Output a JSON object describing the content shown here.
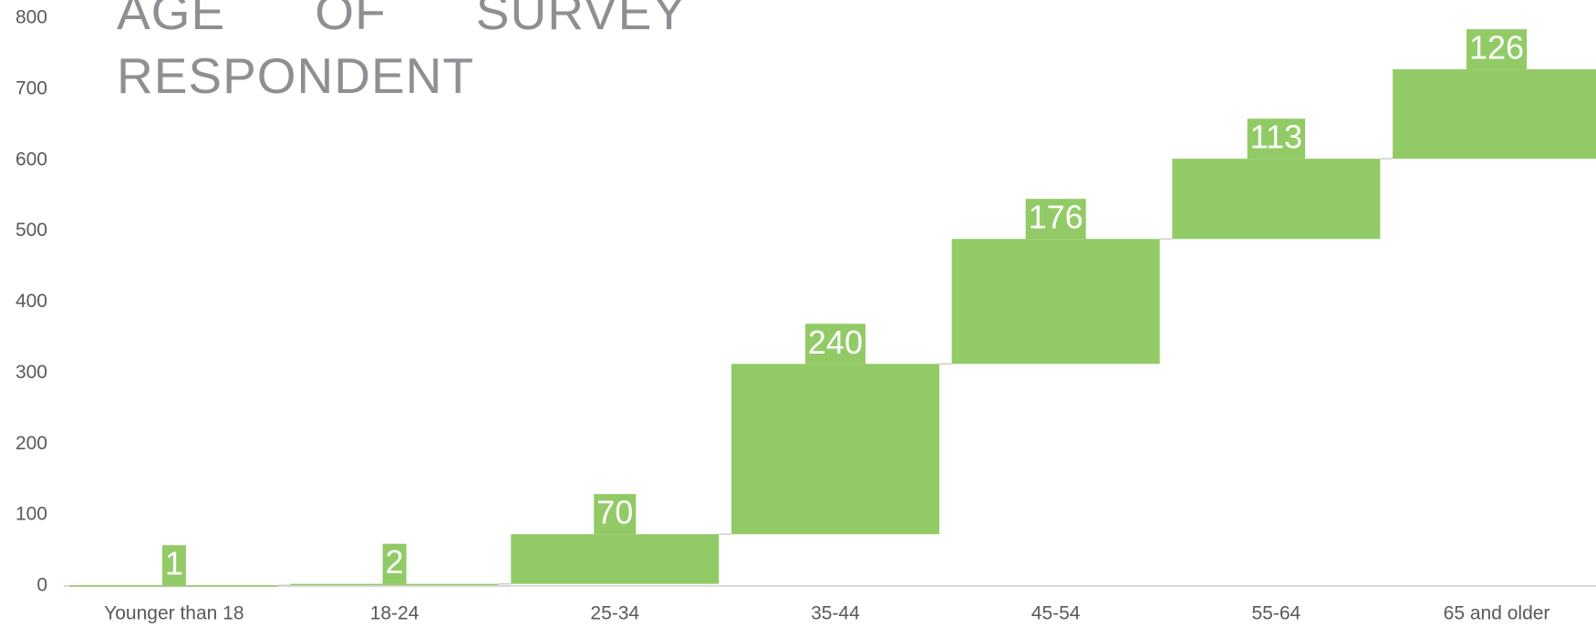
{
  "chart_data": {
    "type": "waterfall",
    "title": "AGE OF SURVEY RESPONDENT",
    "categories": [
      "Younger than 18",
      "18-24",
      "25-34",
      "35-44",
      "45-54",
      "55-64",
      "65 and older"
    ],
    "values": [
      1,
      2,
      70,
      240,
      176,
      113,
      126
    ],
    "color": "#92cb66",
    "ylim": [
      0,
      800
    ],
    "yticks": [
      0,
      100,
      200,
      300,
      400,
      500,
      600,
      700,
      800
    ],
    "grid": false
  }
}
